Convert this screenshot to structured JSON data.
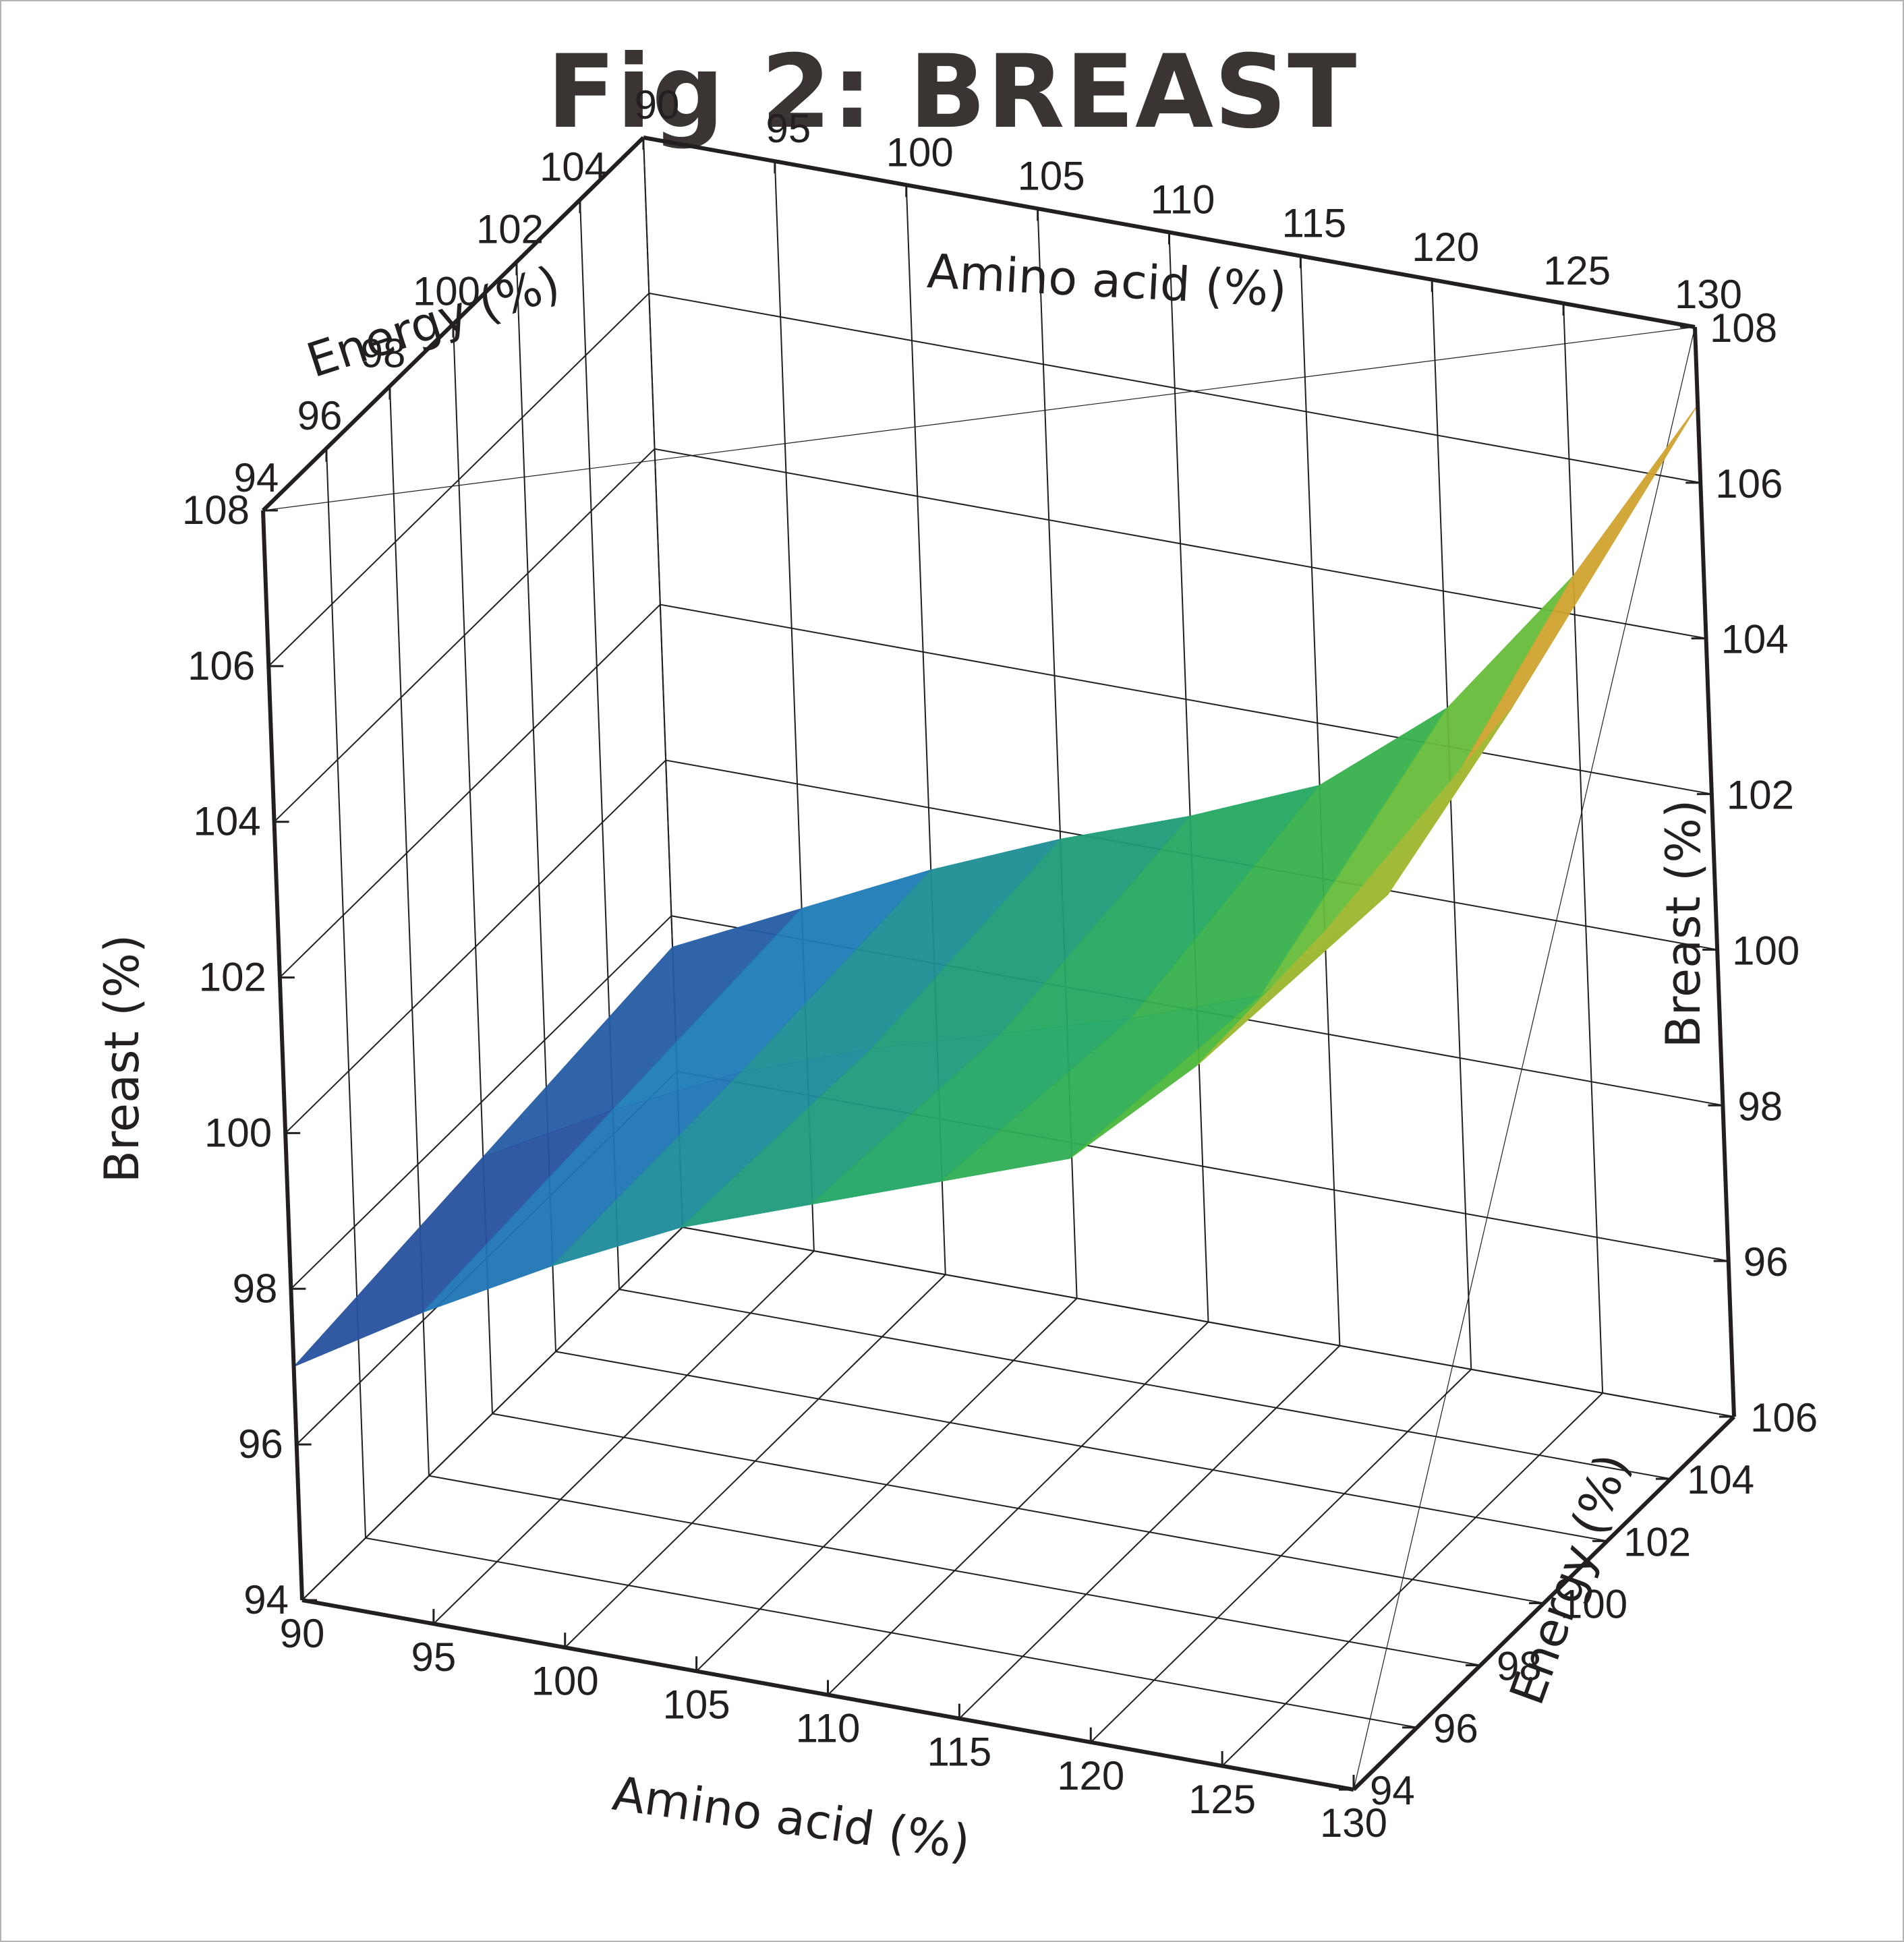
{
  "chart_data": {
    "type": "surface3d",
    "title": "Fig 2: BREAST",
    "axes": {
      "amino_acid": {
        "label": "Amino acid (%)",
        "range": [
          90,
          130
        ],
        "ticks": [
          "90",
          "95",
          "100",
          "105",
          "110",
          "115",
          "120",
          "125",
          "130"
        ]
      },
      "energy_back": {
        "label": "Energy (%)",
        "ticks": [
          "94",
          "96",
          "98",
          "100",
          "102",
          "104"
        ]
      },
      "energy_right": {
        "label": "Energy (%)",
        "ticks": [
          "94",
          "96",
          "98",
          "100",
          "102",
          "104",
          "106"
        ]
      },
      "breast_left": {
        "label": "Breast (%)",
        "range": [
          94,
          108
        ],
        "ticks": [
          "94",
          "96",
          "98",
          "100",
          "102",
          "104",
          "106",
          "108"
        ]
      },
      "breast_right": {
        "label": "Breast (%)",
        "ticks": [
          "96",
          "98",
          "100",
          "102",
          "104",
          "106",
          "108"
        ]
      }
    },
    "grid": true,
    "colormap": [
      "#2b3a8f",
      "#1e7bb8",
      "#1fa56a",
      "#46b83a",
      "#8fc43a",
      "#e39a2e",
      "#e8262b"
    ],
    "surface": {
      "x_amino_acid": [
        90,
        95,
        100,
        105,
        110,
        115,
        120,
        125,
        130
      ],
      "y_energy": [
        94,
        100,
        106
      ],
      "z_breast": [
        [
          97.0,
          98.0,
          98.9,
          99.7,
          100.3,
          100.9,
          101.5,
          103.0,
          105.0
        ],
        [
          97.3,
          98.2,
          99.0,
          99.6,
          100.1,
          100.6,
          101.2,
          102.8,
          105.5
        ],
        [
          97.6,
          98.4,
          99.2,
          99.9,
          100.5,
          101.2,
          102.5,
          104.5,
          107.0
        ]
      ]
    },
    "colors": {
      "frame_border": "#b3b3b3",
      "title": "#3a3433",
      "grid_line": "#231f20"
    }
  }
}
